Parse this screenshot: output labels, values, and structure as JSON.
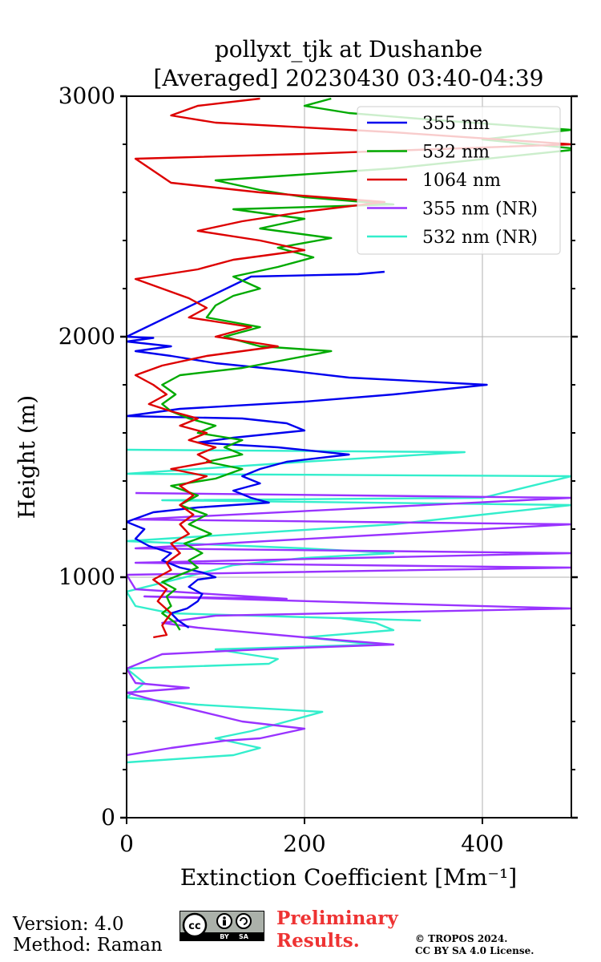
{
  "chart_data": {
    "type": "line",
    "title_line1": "pollyxt_tjk at Dushanbe",
    "title_line2": "[Averaged] 20230430 03:40-04:39",
    "xlabel": "Extinction Coefficient [Mm⁻¹]",
    "ylabel": "Height (m)",
    "xlim": [
      0,
      500
    ],
    "ylim": [
      0,
      3000
    ],
    "xticks": [
      0,
      200,
      400
    ],
    "yticks": [
      0,
      1000,
      2000,
      3000
    ],
    "grid": true,
    "legend_position": "upper-right",
    "series": [
      {
        "name": "355 nm",
        "color": "#0000ee",
        "points": [
          [
            70,
            790
          ],
          [
            58,
            820
          ],
          [
            50,
            850
          ],
          [
            68,
            870
          ],
          [
            80,
            900
          ],
          [
            85,
            930
          ],
          [
            70,
            960
          ],
          [
            80,
            990
          ],
          [
            100,
            1000
          ],
          [
            85,
            1020
          ],
          [
            60,
            1040
          ],
          [
            40,
            1070
          ],
          [
            50,
            1100
          ],
          [
            25,
            1130
          ],
          [
            10,
            1160
          ],
          [
            20,
            1200
          ],
          [
            0,
            1230
          ],
          [
            30,
            1270
          ],
          [
            80,
            1290
          ],
          [
            160,
            1310
          ],
          [
            140,
            1330
          ],
          [
            120,
            1360
          ],
          [
            150,
            1390
          ],
          [
            130,
            1420
          ],
          [
            150,
            1450
          ],
          [
            180,
            1480
          ],
          [
            250,
            1510
          ],
          [
            170,
            1540
          ],
          [
            80,
            1560
          ],
          [
            120,
            1580
          ],
          [
            200,
            1610
          ],
          [
            180,
            1640
          ],
          [
            130,
            1660
          ],
          [
            0,
            1670
          ],
          [
            60,
            1700
          ],
          [
            200,
            1730
          ],
          [
            300,
            1760
          ],
          [
            405,
            1800
          ],
          [
            250,
            1830
          ],
          [
            180,
            1860
          ],
          [
            100,
            1890
          ],
          [
            50,
            1920
          ],
          [
            10,
            1940
          ],
          [
            50,
            1960
          ],
          [
            0,
            1980
          ],
          [
            30,
            1995
          ],
          [
            0,
            2000
          ],
          [
            140,
            2250
          ],
          [
            260,
            2260
          ],
          [
            290,
            2270
          ]
        ]
      },
      {
        "name": "532 nm",
        "color": "#00aa00",
        "points": [
          [
            60,
            780
          ],
          [
            55,
            810
          ],
          [
            40,
            850
          ],
          [
            50,
            880
          ],
          [
            45,
            920
          ],
          [
            55,
            950
          ],
          [
            40,
            980
          ],
          [
            60,
            1010
          ],
          [
            80,
            1040
          ],
          [
            70,
            1070
          ],
          [
            85,
            1100
          ],
          [
            65,
            1140
          ],
          [
            95,
            1180
          ],
          [
            70,
            1220
          ],
          [
            90,
            1260
          ],
          [
            60,
            1300
          ],
          [
            80,
            1340
          ],
          [
            50,
            1380
          ],
          [
            100,
            1410
          ],
          [
            130,
            1450
          ],
          [
            90,
            1480
          ],
          [
            130,
            1510
          ],
          [
            110,
            1540
          ],
          [
            130,
            1570
          ],
          [
            80,
            1600
          ],
          [
            100,
            1630
          ],
          [
            70,
            1660
          ],
          [
            50,
            1690
          ],
          [
            40,
            1720
          ],
          [
            55,
            1760
          ],
          [
            40,
            1800
          ],
          [
            60,
            1840
          ],
          [
            130,
            1870
          ],
          [
            230,
            1940
          ],
          [
            150,
            1960
          ],
          [
            110,
            2000
          ],
          [
            150,
            2040
          ],
          [
            90,
            2080
          ],
          [
            100,
            2130
          ],
          [
            120,
            2170
          ],
          [
            150,
            2200
          ],
          [
            120,
            2250
          ],
          [
            170,
            2290
          ],
          [
            210,
            2330
          ],
          [
            170,
            2370
          ],
          [
            230,
            2410
          ],
          [
            150,
            2450
          ],
          [
            200,
            2490
          ],
          [
            120,
            2530
          ],
          [
            300,
            2550
          ],
          [
            200,
            2580
          ],
          [
            150,
            2610
          ],
          [
            100,
            2650
          ],
          [
            300,
            2700
          ],
          [
            510,
            2780
          ],
          [
            400,
            2820
          ],
          [
            500,
            2860
          ],
          [
            350,
            2900
          ],
          [
            250,
            2930
          ],
          [
            200,
            2960
          ],
          [
            230,
            2990
          ]
        ]
      },
      {
        "name": "1064 nm",
        "color": "#dd0000",
        "points": [
          [
            30,
            750
          ],
          [
            45,
            760
          ],
          [
            40,
            800
          ],
          [
            50,
            850
          ],
          [
            35,
            900
          ],
          [
            45,
            950
          ],
          [
            30,
            990
          ],
          [
            50,
            1030
          ],
          [
            45,
            1060
          ],
          [
            60,
            1100
          ],
          [
            50,
            1140
          ],
          [
            70,
            1180
          ],
          [
            60,
            1220
          ],
          [
            75,
            1260
          ],
          [
            60,
            1300
          ],
          [
            75,
            1340
          ],
          [
            60,
            1380
          ],
          [
            90,
            1420
          ],
          [
            50,
            1450
          ],
          [
            95,
            1480
          ],
          [
            80,
            1510
          ],
          [
            100,
            1540
          ],
          [
            70,
            1570
          ],
          [
            90,
            1600
          ],
          [
            60,
            1630
          ],
          [
            80,
            1660
          ],
          [
            50,
            1690
          ],
          [
            25,
            1720
          ],
          [
            45,
            1760
          ],
          [
            30,
            1800
          ],
          [
            10,
            1840
          ],
          [
            40,
            1880
          ],
          [
            90,
            1920
          ],
          [
            170,
            1960
          ],
          [
            100,
            2000
          ],
          [
            140,
            2040
          ],
          [
            70,
            2080
          ],
          [
            90,
            2120
          ],
          [
            70,
            2160
          ],
          [
            40,
            2200
          ],
          [
            10,
            2240
          ],
          [
            80,
            2280
          ],
          [
            120,
            2320
          ],
          [
            200,
            2360
          ],
          [
            150,
            2400
          ],
          [
            80,
            2440
          ],
          [
            130,
            2480
          ],
          [
            200,
            2520
          ],
          [
            290,
            2560
          ],
          [
            150,
            2600
          ],
          [
            50,
            2640
          ],
          [
            10,
            2740
          ],
          [
            200,
            2760
          ],
          [
            500,
            2800
          ],
          [
            300,
            2850
          ],
          [
            100,
            2890
          ],
          [
            50,
            2920
          ],
          [
            80,
            2960
          ],
          [
            150,
            2990
          ]
        ]
      },
      {
        "name": "355 nm (NR)",
        "color": "#9933ff",
        "points": [
          [
            0,
            260
          ],
          [
            50,
            290
          ],
          [
            110,
            320
          ],
          [
            150,
            330
          ],
          [
            200,
            370
          ],
          [
            130,
            400
          ],
          [
            40,
            480
          ],
          [
            0,
            520
          ],
          [
            70,
            540
          ],
          [
            10,
            560
          ],
          [
            0,
            620
          ],
          [
            40,
            680
          ],
          [
            150,
            700
          ],
          [
            300,
            720
          ],
          [
            200,
            750
          ],
          [
            80,
            790
          ],
          [
            40,
            810
          ],
          [
            100,
            840
          ],
          [
            500,
            870
          ],
          [
            300,
            890
          ],
          [
            20,
            920
          ],
          [
            180,
            910
          ],
          [
            10,
            950
          ],
          [
            0,
            1010
          ],
          [
            500,
            1040
          ],
          [
            10,
            1060
          ],
          [
            500,
            1100
          ],
          [
            10,
            1120
          ],
          [
            500,
            1220
          ],
          [
            10,
            1240
          ],
          [
            500,
            1330
          ],
          [
            10,
            1350
          ]
        ]
      },
      {
        "name": "532 nm (NR)",
        "color": "#33eecc",
        "points": [
          [
            0,
            230
          ],
          [
            120,
            260
          ],
          [
            150,
            290
          ],
          [
            100,
            330
          ],
          [
            140,
            360
          ],
          [
            180,
            400
          ],
          [
            220,
            440
          ],
          [
            80,
            470
          ],
          [
            0,
            500
          ],
          [
            20,
            560
          ],
          [
            0,
            620
          ],
          [
            160,
            640
          ],
          [
            170,
            660
          ],
          [
            100,
            700
          ],
          [
            280,
            720
          ],
          [
            200,
            750
          ],
          [
            300,
            780
          ],
          [
            280,
            810
          ],
          [
            240,
            830
          ],
          [
            330,
            820
          ],
          [
            50,
            850
          ],
          [
            10,
            880
          ],
          [
            0,
            940
          ],
          [
            120,
            1050
          ],
          [
            200,
            1080
          ],
          [
            300,
            1100
          ],
          [
            200,
            1120
          ],
          [
            0,
            1150
          ],
          [
            300,
            1220
          ],
          [
            400,
            1260
          ],
          [
            500,
            1300
          ],
          [
            40,
            1320
          ],
          [
            400,
            1330
          ],
          [
            500,
            1420
          ],
          [
            0,
            1430
          ],
          [
            200,
            1480
          ],
          [
            380,
            1520
          ],
          [
            0,
            1530
          ]
        ]
      }
    ]
  },
  "footer": {
    "version": "Version: 4.0",
    "method": "Method: Raman",
    "preliminary_line1": "Preliminary",
    "preliminary_line2": "Results.",
    "copyright_line1": "© TROPOS 2024.",
    "copyright_line2": "CC BY SA 4.0 License.",
    "cc_badge": {
      "cc_text": "cc",
      "by_text": "BY",
      "sa_text": "SA"
    }
  }
}
